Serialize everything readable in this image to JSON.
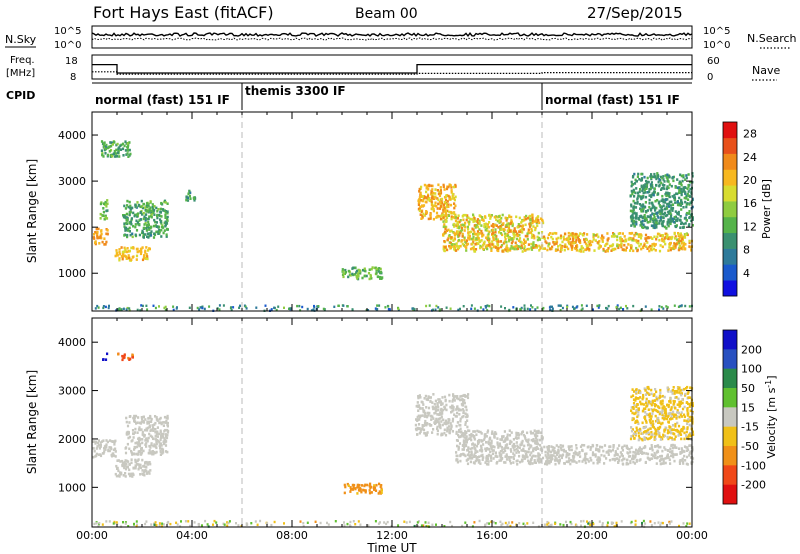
{
  "header": {
    "station": "Fort Hays East (fitACF)",
    "beam": "Beam 00",
    "date": "27/Sep/2015"
  },
  "panels": {
    "nsky_label": "N.Sky",
    "nsearch_label": "N.Search",
    "freq_label_line1": "Freq.",
    "freq_label_line2": "[MHz]",
    "nave_label": "Nave",
    "cpid_label": "CPID",
    "nsky_ticks": [
      "10^5",
      "10^0"
    ],
    "nsearch_ticks": [
      "10^5",
      "10^0"
    ],
    "freq_ticks": [
      "18",
      "8"
    ],
    "nave_ticks": [
      "60",
      "0"
    ],
    "cpid_segments": [
      {
        "start": 0,
        "end": 6,
        "label": "normal (fast) 151 IF"
      },
      {
        "start": 6,
        "end": 18,
        "label": "themis 3300 IF"
      },
      {
        "start": 18,
        "end": 24,
        "label": "normal (fast) 151 IF"
      }
    ],
    "freq_series": {
      "x": [
        0,
        1,
        1,
        13,
        13,
        24
      ],
      "y": [
        14,
        14,
        10.5,
        10.5,
        14,
        14
      ],
      "ylim": [
        8,
        18
      ]
    },
    "nave_series": {
      "x": [
        0,
        1,
        1,
        13,
        13,
        18,
        18,
        24
      ],
      "y": [
        18,
        18,
        12,
        12,
        14,
        14,
        16,
        16
      ],
      "ylim": [
        0,
        60
      ]
    }
  },
  "chart_data": [
    {
      "type": "heatmap",
      "name": "power",
      "ylabel": "Slant Range [km]",
      "x_ticks": [
        "00:00",
        "04:00",
        "08:00",
        "12:00",
        "16:00",
        "20:00",
        "00:00"
      ],
      "y_ticks": [
        1000,
        2000,
        3000,
        4000
      ],
      "ylim": [
        180,
        4500
      ],
      "xlim_hours": [
        0,
        24
      ],
      "colorbar": {
        "label": "Power [dB]",
        "ticks": [
          4,
          8,
          12,
          16,
          20,
          24,
          28
        ],
        "range": [
          0,
          30
        ],
        "colors": [
          "#1010e0",
          "#1a5acc",
          "#2e7a9a",
          "#3a9070",
          "#55b34a",
          "#8fcc40",
          "#d8dc30",
          "#f7b820",
          "#f08a1a",
          "#e8501a",
          "#e01010"
        ]
      },
      "features": [
        {
          "t0": 0.0,
          "t1": 0.6,
          "r0": 1650,
          "r1": 2000,
          "v0": 20,
          "v1": 24
        },
        {
          "t0": 0.3,
          "t1": 0.6,
          "r0": 2200,
          "r1": 2700,
          "v0": 10,
          "v1": 16
        },
        {
          "t0": 0.35,
          "t1": 1.5,
          "r0": 3550,
          "r1": 3900,
          "v0": 8,
          "v1": 14
        },
        {
          "t0": 0.9,
          "t1": 2.3,
          "r0": 1300,
          "r1": 1600,
          "v0": 18,
          "v1": 22
        },
        {
          "t0": 1.2,
          "t1": 3.0,
          "r0": 1800,
          "r1": 2600,
          "v0": 8,
          "v1": 14
        },
        {
          "t0": 3.7,
          "t1": 4.1,
          "r0": 2600,
          "r1": 2850,
          "v0": 8,
          "v1": 12
        },
        {
          "t0": 9.9,
          "t1": 11.6,
          "r0": 900,
          "r1": 1150,
          "v0": 10,
          "v1": 16
        },
        {
          "t0": 13.0,
          "t1": 14.5,
          "r0": 2200,
          "r1": 2950,
          "v0": 18,
          "v1": 24
        },
        {
          "t0": 14.0,
          "t1": 18.0,
          "r0": 1500,
          "r1": 2300,
          "v0": 14,
          "v1": 24
        },
        {
          "t0": 18.0,
          "t1": 24.0,
          "r0": 1500,
          "r1": 1900,
          "v0": 16,
          "v1": 24
        },
        {
          "t0": 21.5,
          "t1": 24.0,
          "r0": 2000,
          "r1": 3200,
          "v0": 8,
          "v1": 12
        }
      ]
    },
    {
      "type": "heatmap",
      "name": "velocity",
      "ylabel": "Slant Range [km]",
      "xlabel": "Time UT",
      "x_ticks": [
        "00:00",
        "04:00",
        "08:00",
        "12:00",
        "16:00",
        "20:00",
        "00:00"
      ],
      "y_ticks": [
        1000,
        2000,
        3000,
        4000
      ],
      "ylim": [
        180,
        4500
      ],
      "xlim_hours": [
        0,
        24
      ],
      "colorbar": {
        "label_main": "Velocity [m s",
        "label_sup": "-1",
        "label_end": "]",
        "ticks": [
          200,
          100,
          50,
          15,
          -15,
          -50,
          -100,
          -200
        ],
        "colors": [
          "#1010c8",
          "#2850c0",
          "#2a8a4a",
          "#60c030",
          "#c8c8c0",
          "#f0c018",
          "#f09018",
          "#f04818",
          "#e01010"
        ]
      },
      "features": [
        {
          "t0": 0.0,
          "t1": 1.0,
          "r0": 1650,
          "r1": 2000,
          "v": 0
        },
        {
          "t0": 0.4,
          "t1": 0.6,
          "r0": 3650,
          "r1": 3800,
          "v": 180
        },
        {
          "t0": 1.0,
          "t1": 1.6,
          "r0": 3650,
          "r1": 3800,
          "v": -80
        },
        {
          "t0": 0.9,
          "t1": 2.3,
          "r0": 1250,
          "r1": 1600,
          "v": 0
        },
        {
          "t0": 1.3,
          "t1": 3.0,
          "r0": 1700,
          "r1": 2500,
          "v": 5
        },
        {
          "t0": 10.0,
          "t1": 11.6,
          "r0": 900,
          "r1": 1100,
          "v": -40
        },
        {
          "t0": 12.9,
          "t1": 15.0,
          "r0": 2100,
          "r1": 2950,
          "v": 0
        },
        {
          "t0": 14.5,
          "t1": 18.0,
          "r0": 1500,
          "r1": 2200,
          "v": 0
        },
        {
          "t0": 18.0,
          "t1": 24.0,
          "r0": 1500,
          "r1": 1900,
          "v": 0
        },
        {
          "t0": 21.5,
          "t1": 24.0,
          "r0": 2000,
          "r1": 3100,
          "v": -20
        }
      ]
    }
  ]
}
